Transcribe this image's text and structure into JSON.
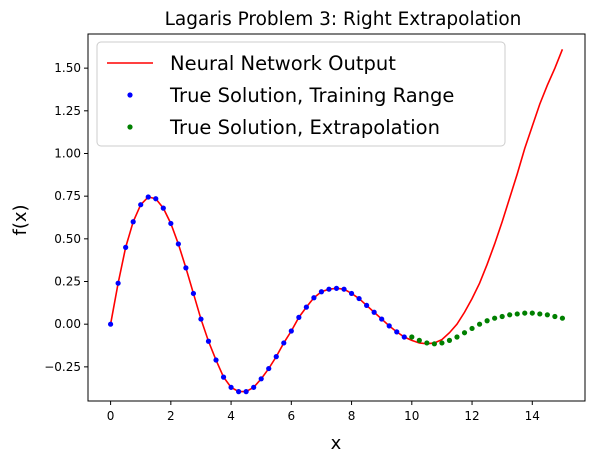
{
  "chart_data": {
    "type": "line",
    "title": "Lagaris Problem 3: Right Extrapolation",
    "xlabel": "x",
    "ylabel": "f(x)",
    "xlim": [
      -0.75,
      15.75
    ],
    "ylim": [
      -0.45,
      1.7
    ],
    "xticks": [
      0,
      2,
      4,
      6,
      8,
      10,
      12,
      14
    ],
    "yticks": [
      -0.25,
      0.0,
      0.25,
      0.5,
      0.75,
      1.0,
      1.25,
      1.5
    ],
    "xtick_labels": [
      "0",
      "2",
      "4",
      "6",
      "8",
      "10",
      "12",
      "14"
    ],
    "ytick_labels": [
      "−0.25",
      "0.00",
      "0.25",
      "0.50",
      "0.75",
      "1.00",
      "1.25",
      "1.50"
    ],
    "grid": false,
    "legend_position": "top-left",
    "series": [
      {
        "name": "Neural Network Output",
        "kind": "line",
        "color": "#ff0000",
        "x": [
          0,
          0.25,
          0.5,
          0.75,
          1.0,
          1.25,
          1.5,
          1.75,
          2.0,
          2.25,
          2.5,
          2.75,
          3.0,
          3.25,
          3.5,
          3.75,
          4.0,
          4.25,
          4.5,
          4.75,
          5.0,
          5.25,
          5.5,
          5.75,
          6.0,
          6.25,
          6.5,
          6.75,
          7.0,
          7.25,
          7.5,
          7.75,
          8.0,
          8.25,
          8.5,
          8.75,
          9.0,
          9.25,
          9.5,
          9.75,
          10.0,
          10.25,
          10.5,
          10.75,
          11.0,
          11.25,
          11.5,
          11.75,
          12.0,
          12.25,
          12.5,
          12.75,
          13.0,
          13.25,
          13.5,
          13.75,
          14.0,
          14.25,
          14.5,
          14.75,
          15.0
        ],
        "y": [
          0.0,
          0.24,
          0.45,
          0.6,
          0.7,
          0.745,
          0.735,
          0.68,
          0.59,
          0.47,
          0.33,
          0.18,
          0.03,
          -0.1,
          -0.21,
          -0.31,
          -0.37,
          -0.395,
          -0.395,
          -0.37,
          -0.32,
          -0.26,
          -0.19,
          -0.11,
          -0.04,
          0.04,
          0.1,
          0.155,
          0.19,
          0.205,
          0.21,
          0.205,
          0.18,
          0.15,
          0.11,
          0.07,
          0.03,
          -0.01,
          -0.045,
          -0.075,
          -0.095,
          -0.11,
          -0.115,
          -0.11,
          -0.09,
          -0.05,
          0.0,
          0.07,
          0.15,
          0.24,
          0.35,
          0.47,
          0.6,
          0.74,
          0.88,
          1.03,
          1.16,
          1.29,
          1.4,
          1.5,
          1.61
        ]
      },
      {
        "name": "True Solution, Training Range",
        "kind": "points",
        "color": "#0000ff",
        "x": [
          0.0,
          0.25,
          0.5,
          0.75,
          1.0,
          1.25,
          1.5,
          1.75,
          2.0,
          2.25,
          2.5,
          2.75,
          3.0,
          3.25,
          3.5,
          3.75,
          4.0,
          4.25,
          4.5,
          4.75,
          5.0,
          5.25,
          5.5,
          5.75,
          6.0,
          6.25,
          6.5,
          6.75,
          7.0,
          7.25,
          7.5,
          7.75,
          8.0,
          8.25,
          8.5,
          8.75,
          9.0,
          9.25,
          9.5,
          9.75
        ],
        "y": [
          0.0,
          0.24,
          0.45,
          0.6,
          0.7,
          0.745,
          0.735,
          0.68,
          0.59,
          0.47,
          0.33,
          0.18,
          0.03,
          -0.1,
          -0.21,
          -0.31,
          -0.37,
          -0.395,
          -0.395,
          -0.37,
          -0.32,
          -0.26,
          -0.19,
          -0.11,
          -0.04,
          0.04,
          0.1,
          0.155,
          0.19,
          0.205,
          0.21,
          0.205,
          0.18,
          0.15,
          0.11,
          0.07,
          0.03,
          -0.01,
          -0.045,
          -0.075
        ]
      },
      {
        "name": "True Solution, Extrapolation",
        "kind": "points",
        "color": "#008000",
        "x": [
          10.0,
          10.25,
          10.5,
          10.75,
          11.0,
          11.25,
          11.5,
          11.75,
          12.0,
          12.25,
          12.5,
          12.75,
          13.0,
          13.25,
          13.5,
          13.75,
          14.0,
          14.25,
          14.5,
          14.75,
          15.0
        ],
        "y": [
          -0.075,
          -0.095,
          -0.11,
          -0.115,
          -0.11,
          -0.095,
          -0.075,
          -0.05,
          -0.025,
          0.0,
          0.02,
          0.035,
          0.045,
          0.055,
          0.06,
          0.065,
          0.065,
          0.06,
          0.055,
          0.045,
          0.035
        ]
      }
    ]
  }
}
